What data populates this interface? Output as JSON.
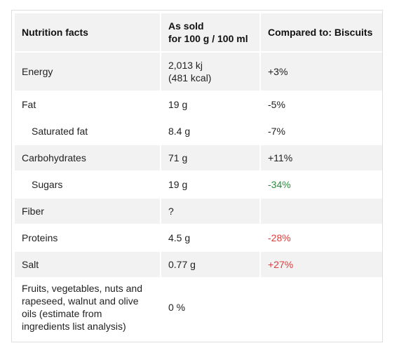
{
  "table": {
    "headers": {
      "col1": "Nutrition facts",
      "col2_line1": "As sold",
      "col2_line2": "for 100 g / 100 ml",
      "col3": "Compared to: Biscuits"
    },
    "rows": [
      {
        "name": "Energy",
        "value_line1": "2,013 kj",
        "value_line2": "(481 kcal)",
        "compare": "+3%",
        "compare_status": "neutral",
        "indent": false
      },
      {
        "name": "Fat",
        "value": "19 g",
        "compare": "-5%",
        "compare_status": "neutral",
        "indent": false
      },
      {
        "name": "Saturated fat",
        "value": "8.4 g",
        "compare": "-7%",
        "compare_status": "neutral",
        "indent": true
      },
      {
        "name": "Carbohydrates",
        "value": "71 g",
        "compare": "+11%",
        "compare_status": "neutral",
        "indent": false
      },
      {
        "name": "Sugars",
        "value": "19 g",
        "compare": "-34%",
        "compare_status": "good",
        "indent": true
      },
      {
        "name": "Fiber",
        "value": "?",
        "compare": "",
        "compare_status": "neutral",
        "indent": false
      },
      {
        "name": "Proteins",
        "value": "4.5 g",
        "compare": "-28%",
        "compare_status": "bad",
        "indent": false
      },
      {
        "name": "Salt",
        "value": "0.77 g",
        "compare": "+27%",
        "compare_status": "bad",
        "indent": false
      },
      {
        "name_lines": [
          "Fruits, vegetables, nuts and",
          "rapeseed, walnut and olive",
          "oils (estimate from",
          "ingredients list analysis)"
        ],
        "value": "0 %",
        "compare": "",
        "compare_status": "neutral",
        "indent": false
      }
    ]
  },
  "colors": {
    "header_bg": "#f2f2f2",
    "row_shade_bg": "#f2f2f2",
    "good": "#2e8b3e",
    "bad": "#e03c3c",
    "border": "#dedede"
  }
}
